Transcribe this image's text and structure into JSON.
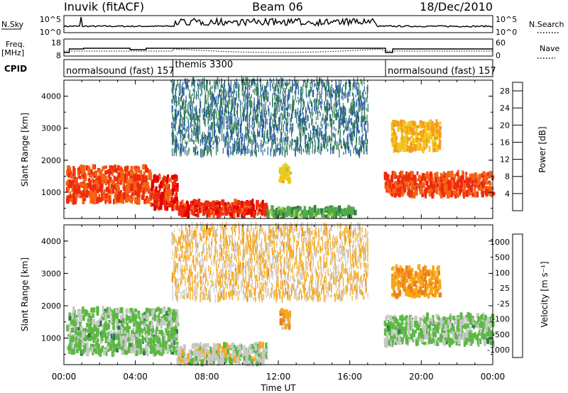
{
  "header": {
    "station": "Inuvik (fitACF)",
    "beam": "Beam 06",
    "date": "18/Dec/2010"
  },
  "panels": {
    "nsky_label": "N.Sky",
    "nsky_ticks": [
      "10^5",
      "10^0"
    ],
    "nsearch_label": "N.Search",
    "nsearch_ticks": [
      "10^5",
      "10^0"
    ],
    "freq_label_line1": "Freq.",
    "freq_label_line2": "[MHz]",
    "freq_ticks": [
      "18",
      "8"
    ],
    "nave_label": "Nave",
    "nave_ticks": [
      "60",
      "0"
    ],
    "cpid_label": "CPID",
    "cpid_segments": [
      {
        "name": "normalsound (fast) 157",
        "start": 0.0,
        "end": 6.1
      },
      {
        "name": "themis 3300",
        "start": 6.1,
        "end": 18.0
      },
      {
        "name": "normalsound (fast) 157",
        "start": 18.0,
        "end": 24.0
      }
    ]
  },
  "colors": {
    "power_scale": [
      "#0a28e6",
      "#245aa0",
      "#2e7c4e",
      "#52a84a",
      "#a0cc38",
      "#f0c81c",
      "#f79a1a",
      "#f46414",
      "#ee2a10",
      "#e00000"
    ],
    "velocity_scale": [
      "#0a2ec8",
      "#1f5aaa",
      "#2e7d4a",
      "#5cb845",
      "#c8c8c8",
      "#f6a81a",
      "#f07b1a",
      "#ec4a14",
      "#e00000"
    ]
  },
  "chart_data": [
    {
      "type": "heatmap",
      "title": "",
      "xlabel": "Time UT",
      "ylabel": "Slant Range [km]",
      "xlim": [
        "00:00",
        "24:00"
      ],
      "xticks": [
        "00:00",
        "04:00",
        "08:00",
        "12:00",
        "16:00",
        "20:00",
        "00:00"
      ],
      "ylim": [
        180,
        4500
      ],
      "yticks": [
        "1000",
        "2000",
        "3000",
        "4000"
      ],
      "colorbar_label": "Power [dB]",
      "colorbar_ticks": [
        "4",
        "8",
        "12",
        "16",
        "20",
        "24",
        "28"
      ],
      "colorbar_range": [
        0,
        30
      ],
      "regions": [
        {
          "t0": 0.1,
          "t1": 4.8,
          "r0": 700,
          "r1": 1800,
          "level": 24
        },
        {
          "t0": 4.8,
          "t1": 6.3,
          "r0": 500,
          "r1": 1500,
          "level": 26
        },
        {
          "t0": 6.3,
          "t1": 11.3,
          "r0": 280,
          "r1": 700,
          "level": 26
        },
        {
          "t0": 11.3,
          "t1": 16.3,
          "r0": 250,
          "r1": 500,
          "level": 10
        },
        {
          "t0": 12.0,
          "t1": 12.6,
          "r0": 1300,
          "r1": 1850,
          "level": 16
        },
        {
          "t0": 17.9,
          "t1": 24.0,
          "r0": 900,
          "r1": 1600,
          "level": 24
        },
        {
          "t0": 18.3,
          "t1": 21.0,
          "r0": 2300,
          "r1": 3200,
          "level": 18
        },
        {
          "t0": 6.0,
          "t1": 17.0,
          "r0": 2200,
          "r1": 4500,
          "level": 6
        }
      ]
    },
    {
      "type": "heatmap",
      "title": "",
      "xlabel": "Time UT",
      "ylabel": "Slant Range [km]",
      "xlim": [
        "00:00",
        "24:00"
      ],
      "xticks": [
        "00:00",
        "04:00",
        "08:00",
        "12:00",
        "16:00",
        "20:00",
        "00:00"
      ],
      "ylim": [
        180,
        4500
      ],
      "yticks": [
        "1000",
        "2000",
        "3000",
        "4000"
      ],
      "colorbar_label": "Velocity [m s⁻¹]",
      "colorbar_ticks": [
        "1000",
        "500",
        "100",
        "25",
        "-25",
        "-100",
        "-500",
        "-1000"
      ],
      "colorbar_range": [
        -1200,
        1200
      ],
      "regions": [
        {
          "t0": 0.1,
          "t1": 6.3,
          "r0": 500,
          "r1": 1900,
          "level": -200
        },
        {
          "t0": 6.3,
          "t1": 11.3,
          "r0": 200,
          "r1": 800,
          "level": 0
        },
        {
          "t0": 12.0,
          "t1": 12.6,
          "r0": 1300,
          "r1": 1850,
          "level": 300
        },
        {
          "t0": 17.9,
          "t1": 24.0,
          "r0": 800,
          "r1": 1700,
          "level": -200
        },
        {
          "t0": 18.3,
          "t1": 21.0,
          "r0": 2300,
          "r1": 3200,
          "level": 350
        },
        {
          "t0": 6.0,
          "t1": 17.0,
          "r0": 2200,
          "r1": 4500,
          "level": 200
        }
      ]
    }
  ]
}
